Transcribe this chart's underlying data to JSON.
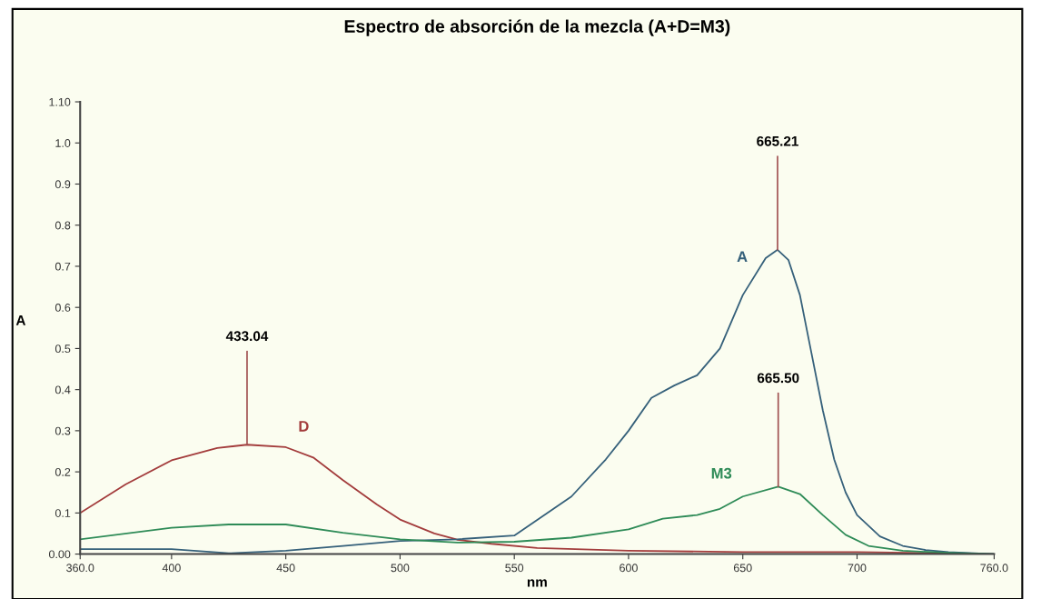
{
  "chart_data": {
    "type": "line",
    "title": "Espectro de absorción de la mezcla (A+D=M3)",
    "xlabel": "nm",
    "ylabel": "A",
    "xlim": [
      360,
      760
    ],
    "ylim": [
      0,
      1.1
    ],
    "xticks": [
      {
        "value": 360,
        "label": "360.0"
      },
      400,
      450,
      500,
      550,
      600,
      650,
      700,
      {
        "value": 760,
        "label": "760.0"
      }
    ],
    "yticks": [
      {
        "value": 0,
        "label": "0.00"
      },
      0.1,
      0.2,
      0.3,
      0.4,
      0.5,
      0.6,
      0.7,
      0.8,
      0.9,
      {
        "value": 1.0,
        "label": "1.0"
      },
      {
        "value": 1.1,
        "label": "1.10"
      }
    ],
    "grid": false,
    "legend": false,
    "marker": "none",
    "line_style": "solid",
    "series": [
      {
        "name": "D",
        "color": "#a33c3c",
        "x": [
          360,
          380,
          400,
          420,
          433,
          450,
          462,
          475,
          490,
          500,
          515,
          525,
          540,
          560,
          600,
          650,
          700,
          760
        ],
        "values": [
          0.1,
          0.17,
          0.228,
          0.258,
          0.266,
          0.26,
          0.235,
          0.18,
          0.12,
          0.084,
          0.05,
          0.035,
          0.025,
          0.015,
          0.008,
          0.005,
          0.005,
          0.0
        ]
      },
      {
        "name": "A",
        "color": "#35607a",
        "x": [
          360,
          400,
          425,
          450,
          475,
          500,
          525,
          550,
          575,
          590,
          600,
          610,
          620,
          630,
          640,
          650,
          660,
          665.21,
          670,
          675,
          680,
          685,
          690,
          695,
          700,
          710,
          720,
          730,
          740,
          760
        ],
        "values": [
          0.012,
          0.012,
          0.002,
          0.008,
          0.02,
          0.032,
          0.036,
          0.045,
          0.14,
          0.23,
          0.3,
          0.38,
          0.41,
          0.435,
          0.5,
          0.63,
          0.72,
          0.74,
          0.715,
          0.63,
          0.49,
          0.35,
          0.23,
          0.15,
          0.095,
          0.043,
          0.02,
          0.01,
          0.005,
          0.0
        ]
      },
      {
        "name": "M3",
        "color": "#2e8b57",
        "x": [
          360,
          400,
          425,
          450,
          475,
          500,
          525,
          550,
          575,
          600,
          615,
          630,
          640,
          650,
          665.5,
          675,
          685,
          695,
          705,
          720,
          740,
          760
        ],
        "values": [
          0.036,
          0.064,
          0.072,
          0.072,
          0.052,
          0.036,
          0.028,
          0.03,
          0.04,
          0.06,
          0.086,
          0.095,
          0.11,
          0.14,
          0.164,
          0.146,
          0.095,
          0.047,
          0.02,
          0.008,
          0.003,
          0.0
        ]
      }
    ],
    "annotations": [
      {
        "text": "433.04",
        "x": 433.04,
        "y": 0.266
      },
      {
        "text": "665.21",
        "x": 665.21,
        "y": 0.74
      },
      {
        "text": "665.50",
        "x": 665.5,
        "y": 0.164
      }
    ]
  }
}
